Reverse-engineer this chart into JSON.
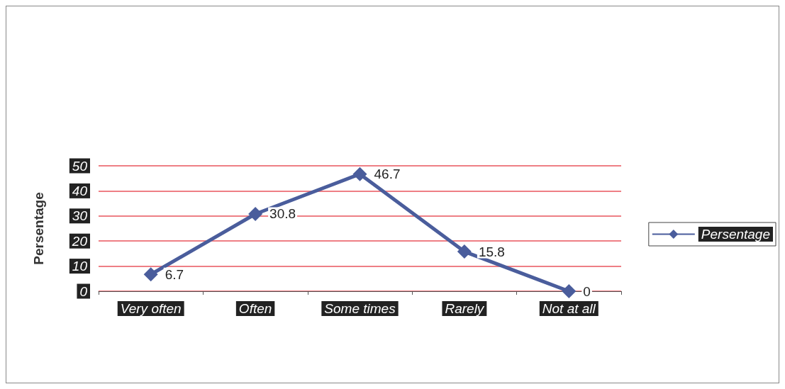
{
  "chart_data": {
    "type": "line",
    "ylabel": "Persentage",
    "categories": [
      "Very often",
      "Often",
      "Some times",
      "Rarely",
      "Not at all"
    ],
    "series": [
      {
        "name": "Persentage",
        "color": "#4a5d9c",
        "values": [
          6.7,
          30.8,
          46.7,
          15.8,
          0
        ]
      }
    ],
    "ylim": [
      0,
      50
    ],
    "yticks": [
      0,
      10,
      20,
      30,
      40,
      50
    ],
    "grid": "y",
    "legend": "right",
    "marker": "diamond",
    "line_style": "solid",
    "data_labels": true
  }
}
